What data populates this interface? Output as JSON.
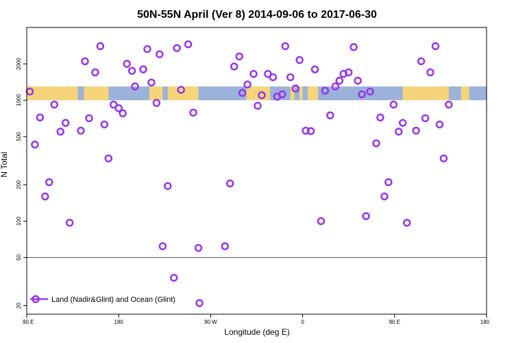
{
  "chart_data": {
    "type": "scatter",
    "title": "50N-55N April (Ver 8)   2014-09-06 to 2017-06-30",
    "xlabel": "Longitude (deg E)",
    "ylabel": "N Total",
    "x_axis": {
      "description": "degrees east, running continuously from 90 E across the dateline to 180",
      "range_deg_east": [
        90,
        540
      ],
      "ticks": [
        {
          "value": 90,
          "label": "90 E"
        },
        {
          "value": 180,
          "label": "180"
        },
        {
          "value": 270,
          "label": "90 W"
        },
        {
          "value": 360,
          "label": "0"
        },
        {
          "value": 450,
          "label": "90 E"
        },
        {
          "value": 540,
          "label": "180"
        }
      ]
    },
    "y_axis": {
      "scale": "log",
      "range": [
        17,
        4000
      ],
      "ticks": [
        20,
        50,
        100,
        200,
        500,
        1000,
        2000
      ]
    },
    "reference_line": {
      "y": 50,
      "color": "#555555"
    },
    "land_ocean_strip": {
      "y_range": [
        1000,
        1300
      ],
      "land_color": "#f6d479",
      "ocean_color": "#9bb3da",
      "land_segments": [
        [
          90,
          140
        ],
        [
          146,
          170
        ],
        [
          210,
          223
        ],
        [
          228,
          258
        ],
        [
          305,
          328
        ],
        [
          348,
          352
        ],
        [
          357,
          360
        ],
        [
          365,
          375
        ],
        [
          458,
          503
        ],
        [
          515,
          523
        ]
      ]
    },
    "series": [
      {
        "name": "Land (Nadir&Glint) and Ocean (Glint)",
        "color": "#9933ee",
        "marker": "open-circle",
        "points": [
          [
            93,
            1180
          ],
          [
            98,
            430
          ],
          [
            103,
            720
          ],
          [
            108,
            160
          ],
          [
            112,
            210
          ],
          [
            117,
            920
          ],
          [
            123,
            550
          ],
          [
            128,
            650
          ],
          [
            132,
            97
          ],
          [
            143,
            560
          ],
          [
            147,
            2100
          ],
          [
            151,
            710
          ],
          [
            157,
            1700
          ],
          [
            162,
            2800
          ],
          [
            166,
            630
          ],
          [
            170,
            330
          ],
          [
            175,
            920
          ],
          [
            180,
            860
          ],
          [
            184,
            780
          ],
          [
            188,
            2000
          ],
          [
            193,
            1750
          ],
          [
            196,
            1300
          ],
          [
            204,
            1800
          ],
          [
            208,
            2650
          ],
          [
            212,
            1400
          ],
          [
            217,
            950
          ],
          [
            220,
            2400
          ],
          [
            223,
            62
          ],
          [
            228,
            195
          ],
          [
            234,
            34
          ],
          [
            237,
            2700
          ],
          [
            241,
            1220
          ],
          [
            248,
            2900
          ],
          [
            253,
            790
          ],
          [
            258,
            60
          ],
          [
            259,
            21
          ],
          [
            284,
            62
          ],
          [
            289,
            205
          ],
          [
            293,
            1900
          ],
          [
            298,
            2300
          ],
          [
            301,
            1150
          ],
          [
            306,
            1350
          ],
          [
            312,
            1650
          ],
          [
            316,
            900
          ],
          [
            320,
            1100
          ],
          [
            326,
            1650
          ],
          [
            331,
            1550
          ],
          [
            335,
            1070
          ],
          [
            340,
            1120
          ],
          [
            343,
            2800
          ],
          [
            348,
            1550
          ],
          [
            353,
            1250
          ],
          [
            357,
            2150
          ],
          [
            363,
            560
          ],
          [
            368,
            555
          ],
          [
            372,
            1800
          ],
          [
            378,
            100
          ],
          [
            382,
            1200
          ],
          [
            387,
            750
          ],
          [
            392,
            1300
          ],
          [
            396,
            1450
          ],
          [
            400,
            1650
          ],
          [
            405,
            1700
          ],
          [
            410,
            2750
          ],
          [
            414,
            1450
          ],
          [
            418,
            1120
          ],
          [
            422,
            110
          ],
          [
            426,
            1180
          ],
          [
            432,
            440
          ],
          [
            436,
            720
          ],
          [
            440,
            160
          ],
          [
            444,
            210
          ],
          [
            449,
            920
          ],
          [
            454,
            550
          ],
          [
            458,
            650
          ],
          [
            462,
            97
          ],
          [
            471,
            560
          ],
          [
            476,
            2100
          ],
          [
            480,
            710
          ],
          [
            485,
            1700
          ],
          [
            490,
            2800
          ],
          [
            494,
            630
          ],
          [
            498,
            330
          ],
          [
            503,
            920
          ]
        ]
      }
    ],
    "legend": {
      "position": "bottom-left",
      "entries": [
        "Land (Nadir&Glint) and Ocean (Glint)"
      ]
    },
    "grid": false
  }
}
